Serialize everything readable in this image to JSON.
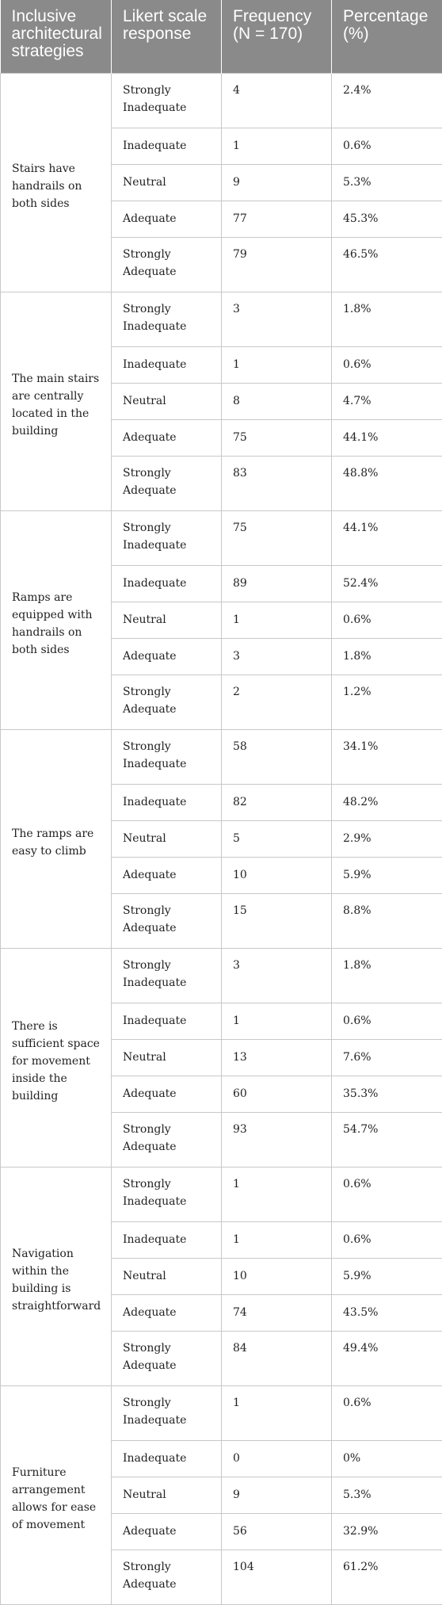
{
  "headers": [
    "Inclusive architectural strategies",
    "Likert scale response",
    "Frequency (N = 170)",
    "Percentage (%)"
  ],
  "groups": [
    {
      "strategy": "Stairs have handrails on both sides",
      "rows": [
        {
          "response": "Strongly Inadequate",
          "frequency": "4",
          "percentage": "2.4%"
        },
        {
          "response": "Inadequate",
          "frequency": "1",
          "percentage": "0.6%"
        },
        {
          "response": "Neutral",
          "frequency": "9",
          "percentage": "5.3%"
        },
        {
          "response": "Adequate",
          "frequency": "77",
          "percentage": "45.3%"
        },
        {
          "response": "Strongly Adequate",
          "frequency": "79",
          "percentage": "46.5%"
        }
      ]
    },
    {
      "strategy": "The main stairs are centrally located in the building",
      "rows": [
        {
          "response": "Strongly Inadequate",
          "frequency": "3",
          "percentage": "1.8%"
        },
        {
          "response": "Inadequate",
          "frequency": "1",
          "percentage": "0.6%"
        },
        {
          "response": "Neutral",
          "frequency": "8",
          "percentage": "4.7%"
        },
        {
          "response": "Adequate",
          "frequency": "75",
          "percentage": "44.1%"
        },
        {
          "response": "Strongly Adequate",
          "frequency": "83",
          "percentage": "48.8%"
        }
      ]
    },
    {
      "strategy": "Ramps are equipped with handrails on both sides",
      "rows": [
        {
          "response": "Strongly Inadequate",
          "frequency": "75",
          "percentage": "44.1%"
        },
        {
          "response": "Inadequate",
          "frequency": "89",
          "percentage": "52.4%"
        },
        {
          "response": "Neutral",
          "frequency": "1",
          "percentage": "0.6%"
        },
        {
          "response": "Adequate",
          "frequency": "3",
          "percentage": "1.8%"
        },
        {
          "response": "Strongly Adequate",
          "frequency": "2",
          "percentage": "1.2%"
        }
      ]
    },
    {
      "strategy": "The ramps are easy to climb",
      "rows": [
        {
          "response": "Strongly Inadequate",
          "frequency": "58",
          "percentage": "34.1%"
        },
        {
          "response": "Inadequate",
          "frequency": "82",
          "percentage": "48.2%"
        },
        {
          "response": "Neutral",
          "frequency": "5",
          "percentage": "2.9%"
        },
        {
          "response": "Adequate",
          "frequency": "10",
          "percentage": "5.9%"
        },
        {
          "response": "Strongly Adequate",
          "frequency": "15",
          "percentage": "8.8%"
        }
      ]
    },
    {
      "strategy": "There is sufficient space for movement inside the building",
      "rows": [
        {
          "response": "Strongly Inadequate",
          "frequency": "3",
          "percentage": "1.8%"
        },
        {
          "response": "Inadequate",
          "frequency": "1",
          "percentage": "0.6%"
        },
        {
          "response": "Neutral",
          "frequency": "13",
          "percentage": "7.6%"
        },
        {
          "response": "Adequate",
          "frequency": "60",
          "percentage": "35.3%"
        },
        {
          "response": "Strongly Adequate",
          "frequency": "93",
          "percentage": "54.7%"
        }
      ]
    },
    {
      "strategy": "Navigation within the building is straightforward",
      "rows": [
        {
          "response": "Strongly Inadequate",
          "frequency": "1",
          "percentage": "0.6%"
        },
        {
          "response": "Inadequate",
          "frequency": "1",
          "percentage": "0.6%"
        },
        {
          "response": "Neutral",
          "frequency": "10",
          "percentage": "5.9%"
        },
        {
          "response": "Adequate",
          "frequency": "74",
          "percentage": "43.5%"
        },
        {
          "response": "Strongly Adequate",
          "frequency": "84",
          "percentage": "49.4%"
        }
      ]
    },
    {
      "strategy": "Furniture arrangement allows for ease of movement",
      "rows": [
        {
          "response": "Strongly Inadequate",
          "frequency": "1",
          "percentage": "0.6%"
        },
        {
          "response": "Inadequate",
          "frequency": "0",
          "percentage": "0%"
        },
        {
          "response": "Neutral",
          "frequency": "9",
          "percentage": "5.3%"
        },
        {
          "response": "Adequate",
          "frequency": "56",
          "percentage": "32.9%"
        },
        {
          "response": "Strongly Adequate",
          "frequency": "104",
          "percentage": "61.2%"
        }
      ]
    }
  ]
}
